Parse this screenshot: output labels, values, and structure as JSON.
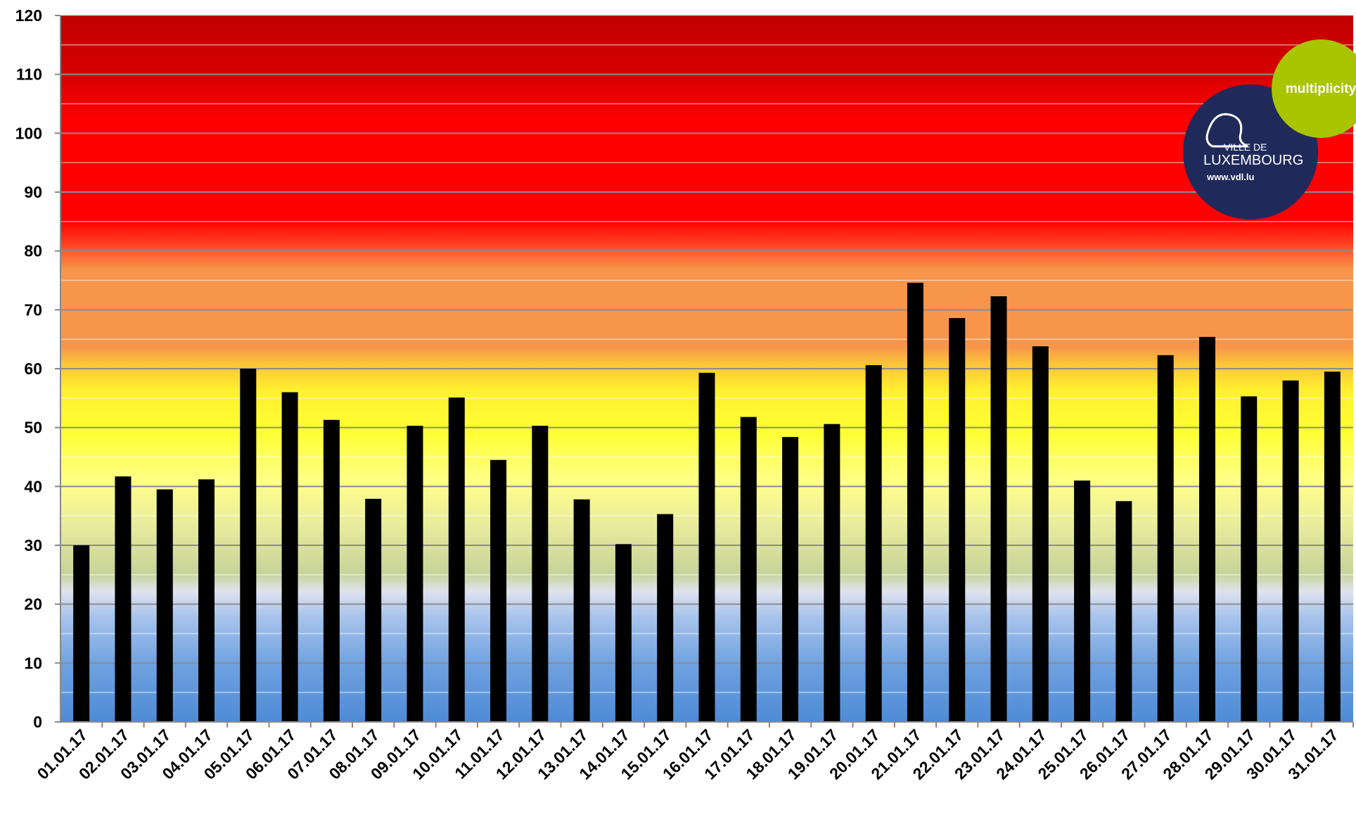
{
  "chart_data": {
    "type": "bar",
    "title": "",
    "xlabel": "",
    "ylabel": "",
    "ylim": [
      0,
      120
    ],
    "yticks": [
      0,
      10,
      20,
      30,
      40,
      50,
      60,
      70,
      80,
      90,
      100,
      110,
      120
    ],
    "grid": true,
    "bar_color": "#000000",
    "categories": [
      "01.01.17",
      "02.01.17",
      "03.01.17",
      "04.01.17",
      "05.01.17",
      "06.01.17",
      "07.01.17",
      "08.01.17",
      "09.01.17",
      "10.01.17",
      "11.01.17",
      "12.01.17",
      "13.01.17",
      "14.01.17",
      "15.01.17",
      "16.01.17",
      "17.01.17",
      "18.01.17",
      "19.01.17",
      "20.01.17",
      "21.01.17",
      "22.01.17",
      "23.01.17",
      "24.01.17",
      "25.01.17",
      "26.01.17",
      "27.01.17",
      "28.01.17",
      "29.01.17",
      "30.01.17",
      "31.01.17"
    ],
    "values": [
      30.0,
      41.7,
      39.5,
      41.2,
      60.0,
      56.0,
      51.3,
      37.9,
      50.3,
      55.1,
      44.5,
      50.3,
      37.8,
      30.2,
      35.3,
      59.3,
      51.8,
      48.4,
      50.6,
      60.6,
      74.6,
      68.6,
      72.3,
      63.8,
      41.0,
      37.5,
      62.3,
      65.4,
      55.3,
      58.0,
      59.5
    ],
    "background_bands": [
      {
        "from": 0,
        "to": 25,
        "color": "#5b93d8"
      },
      {
        "from": 25,
        "to": 40,
        "color": "#d8dc9a"
      },
      {
        "from": 40,
        "to": 60,
        "color": "#ffff3a"
      },
      {
        "from": 60,
        "to": 80,
        "color": "#f7964b"
      },
      {
        "from": 80,
        "to": 108,
        "color": "#ff0000"
      },
      {
        "from": 108,
        "to": 120,
        "color": "#c00000"
      }
    ]
  },
  "logos": {
    "multiplicity": {
      "text": "multiplicity",
      "color": "#a9c400"
    },
    "vdl": {
      "line1": "VILLE DE",
      "line2": "LUXEMBOURG",
      "url": "www.vdl.lu",
      "color": "#1f2a5a"
    }
  }
}
